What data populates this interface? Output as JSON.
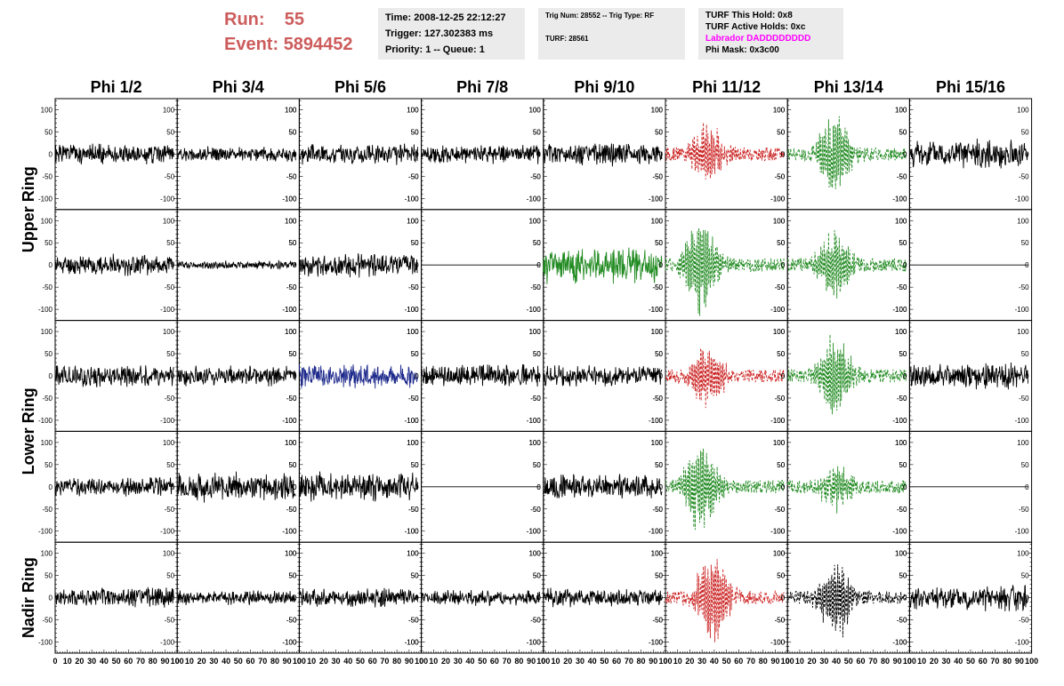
{
  "header": {
    "run_label": "Run:",
    "run_value": "55",
    "event_label": "Event:",
    "event_value": "5894452"
  },
  "info": {
    "time": "Time: 2008-12-25 22:12:27",
    "trigger": "Trigger: 127.302383 ms",
    "priority": "Priority: 1 -- Queue: 1",
    "trig": "Trig Num: 28552 -- Trig Type: RF",
    "turf": "TURF: 28561",
    "hold": "TURF This Hold: 0x8",
    "active_holds": "TURF Active Holds: 0xc",
    "labrador": "Labrador DADDDDDDDD",
    "phi_mask": "Phi Mask: 0x3c00"
  },
  "colors": {
    "header_red": "#cd5c5c",
    "labrador_magenta": "#ff00ff",
    "trace_black": "#000000",
    "trace_red": "#cc2222",
    "trace_green": "#228b22",
    "trace_blue": "#1e2a8c"
  },
  "chart_data": {
    "type": "line",
    "columns": [
      "Phi 1/2",
      "Phi 3/4",
      "Phi 5/6",
      "Phi 7/8",
      "Phi 9/10",
      "Phi 11/12",
      "Phi 13/14",
      "Phi 15/16"
    ],
    "ring_labels": [
      {
        "label": "Upper Ring"
      },
      {
        "label": "Lower Ring"
      },
      {
        "label": "Nadir Ring"
      }
    ],
    "xlim": [
      0,
      100
    ],
    "ylim": [
      -125,
      125
    ],
    "x_ticks": [
      "0",
      "10",
      "20",
      "30",
      "40",
      "50",
      "60",
      "70",
      "80",
      "90",
      "100"
    ],
    "y_ticks": [
      "100",
      "50",
      "0",
      "-50",
      "-100"
    ],
    "rows": [
      [
        {
          "color": "black",
          "style": "solid",
          "amp": 20,
          "kind": "noise",
          "seed": 1
        },
        {
          "color": "black",
          "style": "solid",
          "amp": 14,
          "kind": "noise",
          "seed": 2
        },
        {
          "color": "black",
          "style": "solid",
          "amp": 20,
          "kind": "noise",
          "seed": 3
        },
        {
          "color": "black",
          "style": "solid",
          "amp": 18,
          "kind": "noise",
          "seed": 4
        },
        {
          "color": "black",
          "style": "solid",
          "amp": 22,
          "kind": "noise",
          "seed": 5
        },
        {
          "color": "red",
          "style": "dashed",
          "amp": 65,
          "kind": "pulse",
          "center": 35,
          "seed": 6
        },
        {
          "color": "green",
          "style": "dashed",
          "amp": 100,
          "kind": "pulse",
          "center": 40,
          "seed": 7
        },
        {
          "color": "black",
          "style": "solid",
          "amp": 28,
          "kind": "noise",
          "seed": 8
        }
      ],
      [
        {
          "color": "black",
          "style": "solid",
          "amp": 20,
          "kind": "noise",
          "seed": 11
        },
        {
          "color": "black",
          "style": "solid",
          "amp": 8,
          "kind": "noise",
          "seed": 12
        },
        {
          "color": "black",
          "style": "solid",
          "amp": 22,
          "kind": "noise",
          "seed": 13
        },
        {
          "color": "black",
          "style": "solid",
          "amp": 0,
          "kind": "flat",
          "seed": 14
        },
        {
          "color": "green",
          "style": "solid",
          "amp": 35,
          "kind": "noise",
          "seed": 15
        },
        {
          "color": "green",
          "style": "dashed",
          "amp": 110,
          "kind": "pulse",
          "center": 30,
          "seed": 16
        },
        {
          "color": "green",
          "style": "dashed",
          "amp": 85,
          "kind": "pulse",
          "center": 40,
          "seed": 17
        },
        {
          "color": "black",
          "style": "solid",
          "amp": 0,
          "kind": "flat",
          "seed": 18
        }
      ],
      [
        {
          "color": "black",
          "style": "solid",
          "amp": 22,
          "kind": "noise",
          "seed": 21
        },
        {
          "color": "black",
          "style": "solid",
          "amp": 20,
          "kind": "noise",
          "seed": 22
        },
        {
          "color": "blue",
          "style": "solid",
          "amp": 25,
          "kind": "noise",
          "seed": 23
        },
        {
          "color": "black",
          "style": "solid",
          "amp": 22,
          "kind": "noise",
          "seed": 24
        },
        {
          "color": "black",
          "style": "solid",
          "amp": 20,
          "kind": "noise",
          "seed": 25
        },
        {
          "color": "red",
          "style": "dashed",
          "amp": 70,
          "kind": "pulse",
          "center": 35,
          "seed": 26
        },
        {
          "color": "green",
          "style": "dashed",
          "amp": 95,
          "kind": "pulse",
          "center": 40,
          "seed": 27
        },
        {
          "color": "black",
          "style": "solid",
          "amp": 25,
          "kind": "noise",
          "seed": 28
        }
      ],
      [
        {
          "color": "black",
          "style": "solid",
          "amp": 18,
          "kind": "noise",
          "seed": 31
        },
        {
          "color": "black",
          "style": "solid",
          "amp": 28,
          "kind": "noise",
          "seed": 32
        },
        {
          "color": "black",
          "style": "solid",
          "amp": 28,
          "kind": "noise",
          "seed": 33
        },
        {
          "color": "black",
          "style": "solid",
          "amp": 0,
          "kind": "flat",
          "seed": 34
        },
        {
          "color": "black",
          "style": "solid",
          "amp": 25,
          "kind": "noise",
          "seed": 35
        },
        {
          "color": "green",
          "style": "dashed",
          "amp": 110,
          "kind": "pulse",
          "center": 30,
          "seed": 36
        },
        {
          "color": "green",
          "style": "dashed",
          "amp": 50,
          "kind": "pulse",
          "center": 40,
          "seed": 37
        },
        {
          "color": "black",
          "style": "solid",
          "amp": 0,
          "kind": "flat",
          "seed": 38
        }
      ],
      [
        {
          "color": "black",
          "style": "solid",
          "amp": 20,
          "kind": "noise",
          "seed": 41
        },
        {
          "color": "black",
          "style": "solid",
          "amp": 14,
          "kind": "noise",
          "seed": 42
        },
        {
          "color": "black",
          "style": "solid",
          "amp": 18,
          "kind": "noise",
          "seed": 43
        },
        {
          "color": "black",
          "style": "solid",
          "amp": 15,
          "kind": "noise",
          "seed": 44
        },
        {
          "color": "black",
          "style": "solid",
          "amp": 18,
          "kind": "noise",
          "seed": 45
        },
        {
          "color": "red",
          "style": "dashed",
          "amp": 115,
          "kind": "pulse",
          "center": 40,
          "seed": 46
        },
        {
          "color": "black",
          "style": "dashed",
          "amp": 95,
          "kind": "pulse",
          "center": 42,
          "seed": 47
        },
        {
          "color": "black",
          "style": "solid",
          "amp": 25,
          "kind": "noise",
          "seed": 48
        }
      ]
    ]
  }
}
